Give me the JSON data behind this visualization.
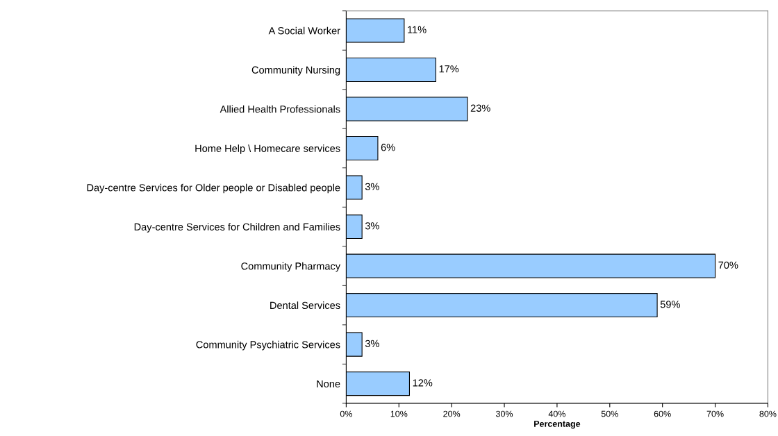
{
  "chart_data": {
    "type": "bar",
    "orientation": "horizontal",
    "xlabel": "Percentage",
    "categories": [
      "A Social Worker",
      "Community Nursing",
      "Allied Health Professionals",
      "Home Help \\ Homecare services",
      "Day-centre Services for Older people or Disabled people",
      "Day-centre Services for Children and Families",
      "Community Pharmacy",
      "Dental Services",
      "Community Psychiatric Services",
      "None"
    ],
    "values": [
      11,
      17,
      23,
      6,
      3,
      3,
      70,
      59,
      3,
      12
    ],
    "value_labels": [
      "11%",
      "17%",
      "23%",
      "6%",
      "3%",
      "3%",
      "70%",
      "59%",
      "3%",
      "12%"
    ],
    "color": "#99ccff",
    "xlim": [
      0,
      80
    ],
    "xticks": [
      {
        "value": 0,
        "label": "0%"
      },
      {
        "value": 10,
        "label": "10%"
      },
      {
        "value": 20,
        "label": "20%"
      },
      {
        "value": 30,
        "label": "30%"
      },
      {
        "value": 40,
        "label": "40%"
      },
      {
        "value": 50,
        "label": "50%"
      },
      {
        "value": 60,
        "label": "60%"
      },
      {
        "value": 70,
        "label": "70%"
      },
      {
        "value": 80,
        "label": "80%"
      }
    ],
    "grid": false,
    "legend": false
  }
}
